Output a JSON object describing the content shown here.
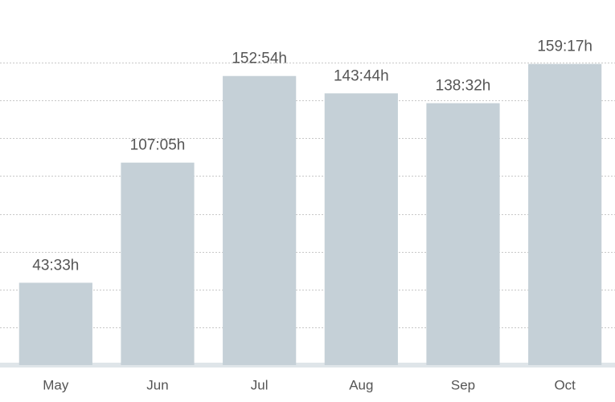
{
  "chart_data": {
    "type": "bar",
    "categories": [
      "May",
      "Jun",
      "Jul",
      "Aug",
      "Sep",
      "Oct"
    ],
    "values": [
      43.55,
      107.0833,
      152.9,
      143.7333,
      138.5333,
      159.2833
    ],
    "value_labels": [
      "43:33h",
      "107:05h",
      "152:54h",
      "143:44h",
      "138:32h",
      "159:17h"
    ],
    "color": "#c5d0d7",
    "ylim": [
      0,
      160
    ],
    "yticks": [
      20,
      40,
      60,
      80,
      100,
      120,
      140,
      160
    ],
    "grid": true
  }
}
